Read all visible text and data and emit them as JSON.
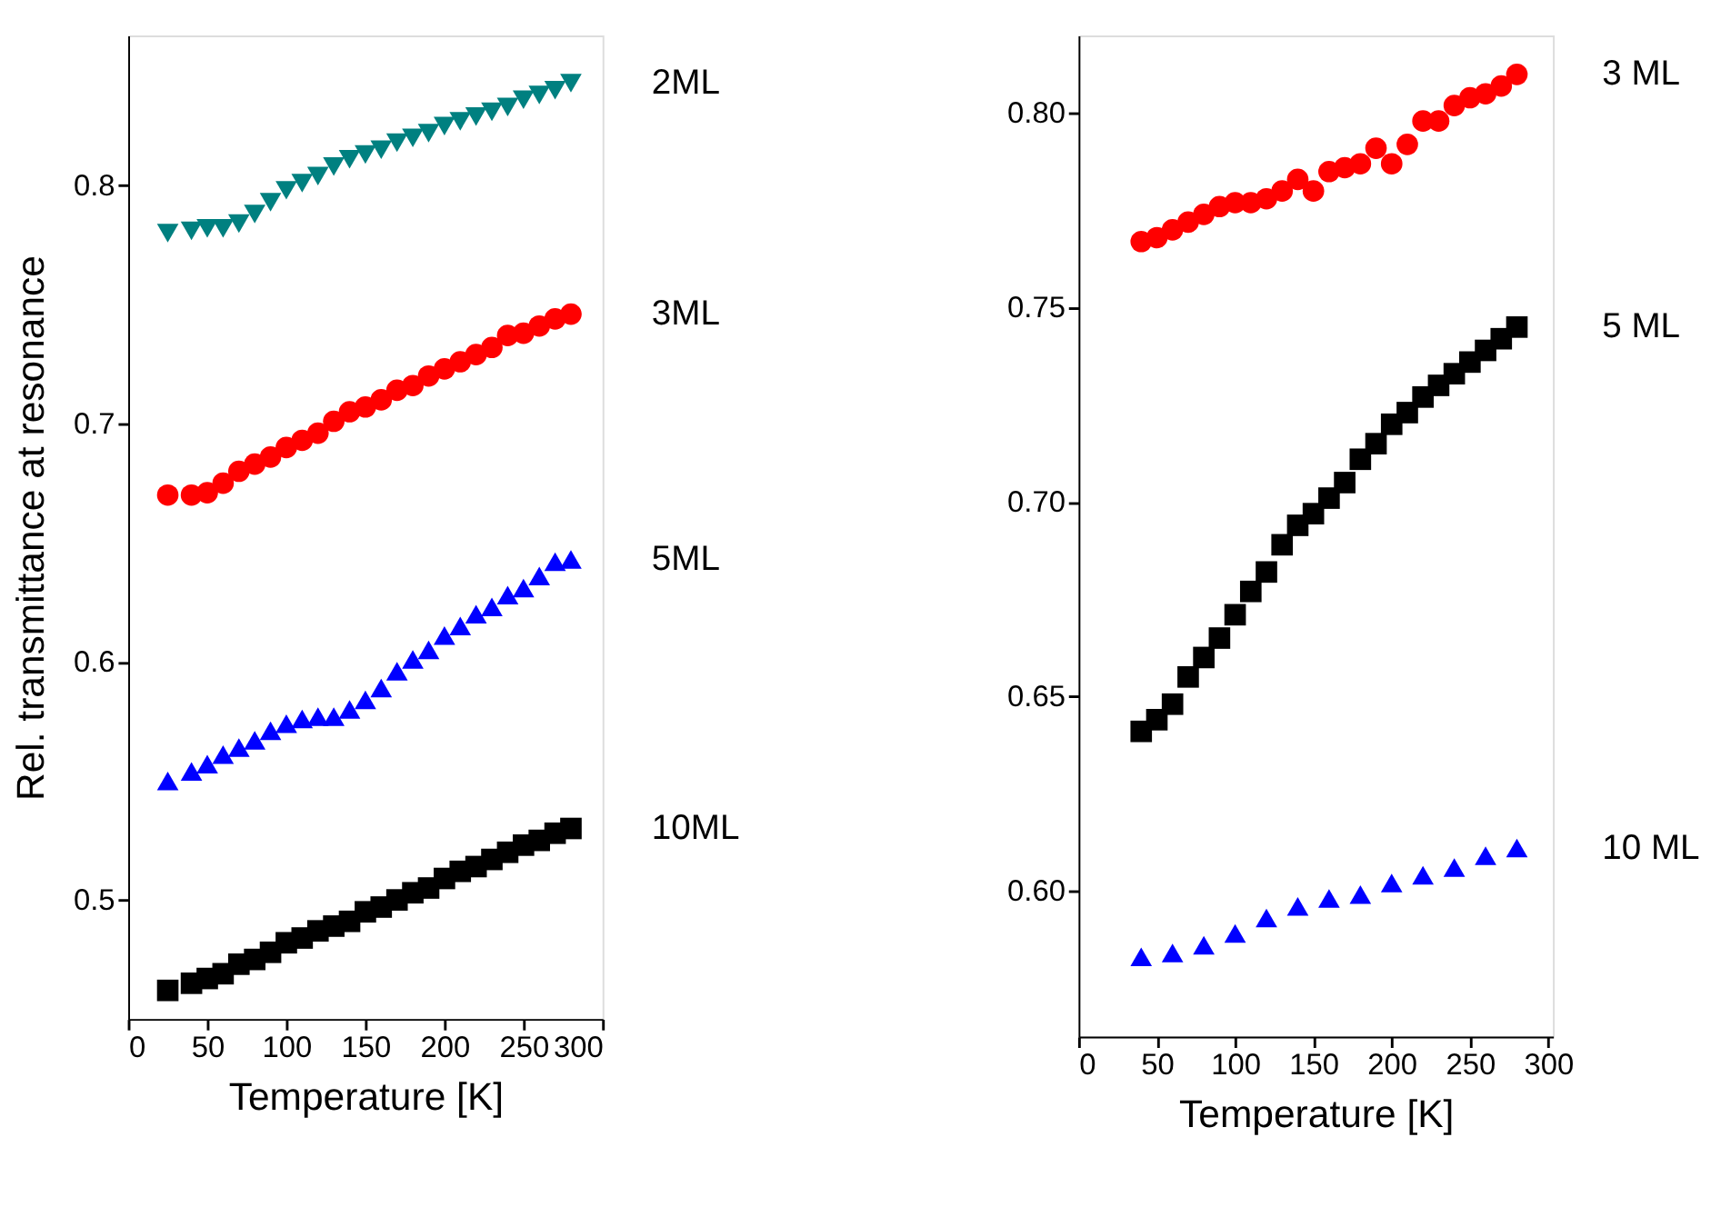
{
  "chart_data": [
    {
      "type": "scatter",
      "xlabel": "Temperature [K]",
      "ylabel": "Rel. transmittance at resonance",
      "xlim": [
        0,
        300
      ],
      "xticks": [
        0,
        50,
        100,
        150,
        200,
        250,
        300
      ],
      "ylim": [
        0.45,
        0.863
      ],
      "yticks": [
        0.5,
        0.6,
        0.7,
        0.8
      ],
      "grid": false,
      "legend": false,
      "x": [
        25,
        40,
        50,
        60,
        70,
        80,
        90,
        100,
        110,
        120,
        130,
        140,
        150,
        160,
        170,
        180,
        190,
        200,
        210,
        220,
        230,
        240,
        250,
        260,
        270,
        280
      ],
      "series": [
        {
          "name": "2ML",
          "color": "#008080",
          "marker": "triangle-down",
          "values": [
            0.78,
            0.781,
            0.782,
            0.782,
            0.784,
            0.788,
            0.793,
            0.798,
            0.801,
            0.804,
            0.808,
            0.811,
            0.813,
            0.815,
            0.818,
            0.82,
            0.822,
            0.825,
            0.827,
            0.829,
            0.831,
            0.833,
            0.836,
            0.838,
            0.84,
            0.843
          ]
        },
        {
          "name": "3ML",
          "color": "#ff0000",
          "marker": "circle",
          "values": [
            0.67,
            0.67,
            0.671,
            0.675,
            0.68,
            0.683,
            0.686,
            0.69,
            0.693,
            0.696,
            0.701,
            0.705,
            0.707,
            0.71,
            0.714,
            0.716,
            0.72,
            0.723,
            0.726,
            0.729,
            0.732,
            0.737,
            0.738,
            0.741,
            0.744,
            0.746
          ]
        },
        {
          "name": "5ML",
          "color": "#0000ff",
          "marker": "triangle",
          "values": [
            0.55,
            0.554,
            0.557,
            0.561,
            0.564,
            0.567,
            0.571,
            0.574,
            0.576,
            0.577,
            0.577,
            0.58,
            0.584,
            0.589,
            0.596,
            0.601,
            0.605,
            0.611,
            0.615,
            0.62,
            0.623,
            0.628,
            0.631,
            0.636,
            0.642,
            0.643
          ]
        },
        {
          "name": "10ML",
          "color": "#000000",
          "marker": "square",
          "values": [
            0.462,
            0.465,
            0.467,
            0.469,
            0.473,
            0.475,
            0.478,
            0.482,
            0.484,
            0.487,
            0.489,
            0.491,
            0.495,
            0.497,
            0.5,
            0.503,
            0.505,
            0.509,
            0.512,
            0.514,
            0.517,
            0.52,
            0.523,
            0.525,
            0.528,
            0.53
          ]
        }
      ]
    },
    {
      "type": "scatter",
      "xlabel": "Temperature [K]",
      "xlim": [
        0,
        303
      ],
      "xticks": [
        0,
        50,
        100,
        150,
        200,
        250,
        300
      ],
      "ylim": [
        0.5625,
        0.82
      ],
      "yticks": [
        {
          "value": 0.6,
          "label": "0.60"
        },
        {
          "value": 0.65,
          "label": "0.65"
        },
        {
          "value": 0.7,
          "label": "0.70"
        },
        {
          "value": 0.75,
          "label": "0.75"
        },
        {
          "value": 0.8,
          "label": "0.80"
        }
      ],
      "grid": false,
      "legend": false,
      "series": [
        {
          "name": "3 ML",
          "color": "#ff0000",
          "marker": "circle",
          "x": [
            40,
            50,
            60,
            70,
            80,
            90,
            100,
            110,
            120,
            130,
            140,
            150,
            160,
            170,
            180,
            190,
            200,
            210,
            220,
            230,
            240,
            250,
            260,
            270,
            280
          ],
          "values": [
            0.767,
            0.768,
            0.77,
            0.772,
            0.774,
            0.776,
            0.777,
            0.777,
            0.778,
            0.78,
            0.783,
            0.78,
            0.785,
            0.786,
            0.787,
            0.791,
            0.787,
            0.792,
            0.798,
            0.798,
            0.802,
            0.804,
            0.805,
            0.807,
            0.81
          ]
        },
        {
          "name": "5 ML",
          "color": "#000000",
          "marker": "square",
          "x": [
            40,
            50,
            60,
            70,
            80,
            90,
            100,
            110,
            120,
            130,
            140,
            150,
            160,
            170,
            180,
            190,
            200,
            210,
            220,
            230,
            240,
            250,
            260,
            270,
            280
          ],
          "values": [
            0.641,
            0.644,
            0.648,
            0.655,
            0.66,
            0.665,
            0.671,
            0.677,
            0.682,
            0.689,
            0.694,
            0.697,
            0.701,
            0.705,
            0.711,
            0.715,
            0.72,
            0.723,
            0.727,
            0.73,
            0.733,
            0.736,
            0.739,
            0.742,
            0.745
          ]
        },
        {
          "name": "10 ML",
          "color": "#0000ff",
          "marker": "triangle",
          "x": [
            40,
            60,
            80,
            100,
            120,
            140,
            160,
            180,
            200,
            220,
            240,
            260,
            280
          ],
          "values": [
            0.583,
            0.584,
            0.586,
            0.589,
            0.593,
            0.596,
            0.598,
            0.599,
            0.602,
            0.604,
            0.606,
            0.609,
            0.611
          ]
        }
      ]
    }
  ]
}
